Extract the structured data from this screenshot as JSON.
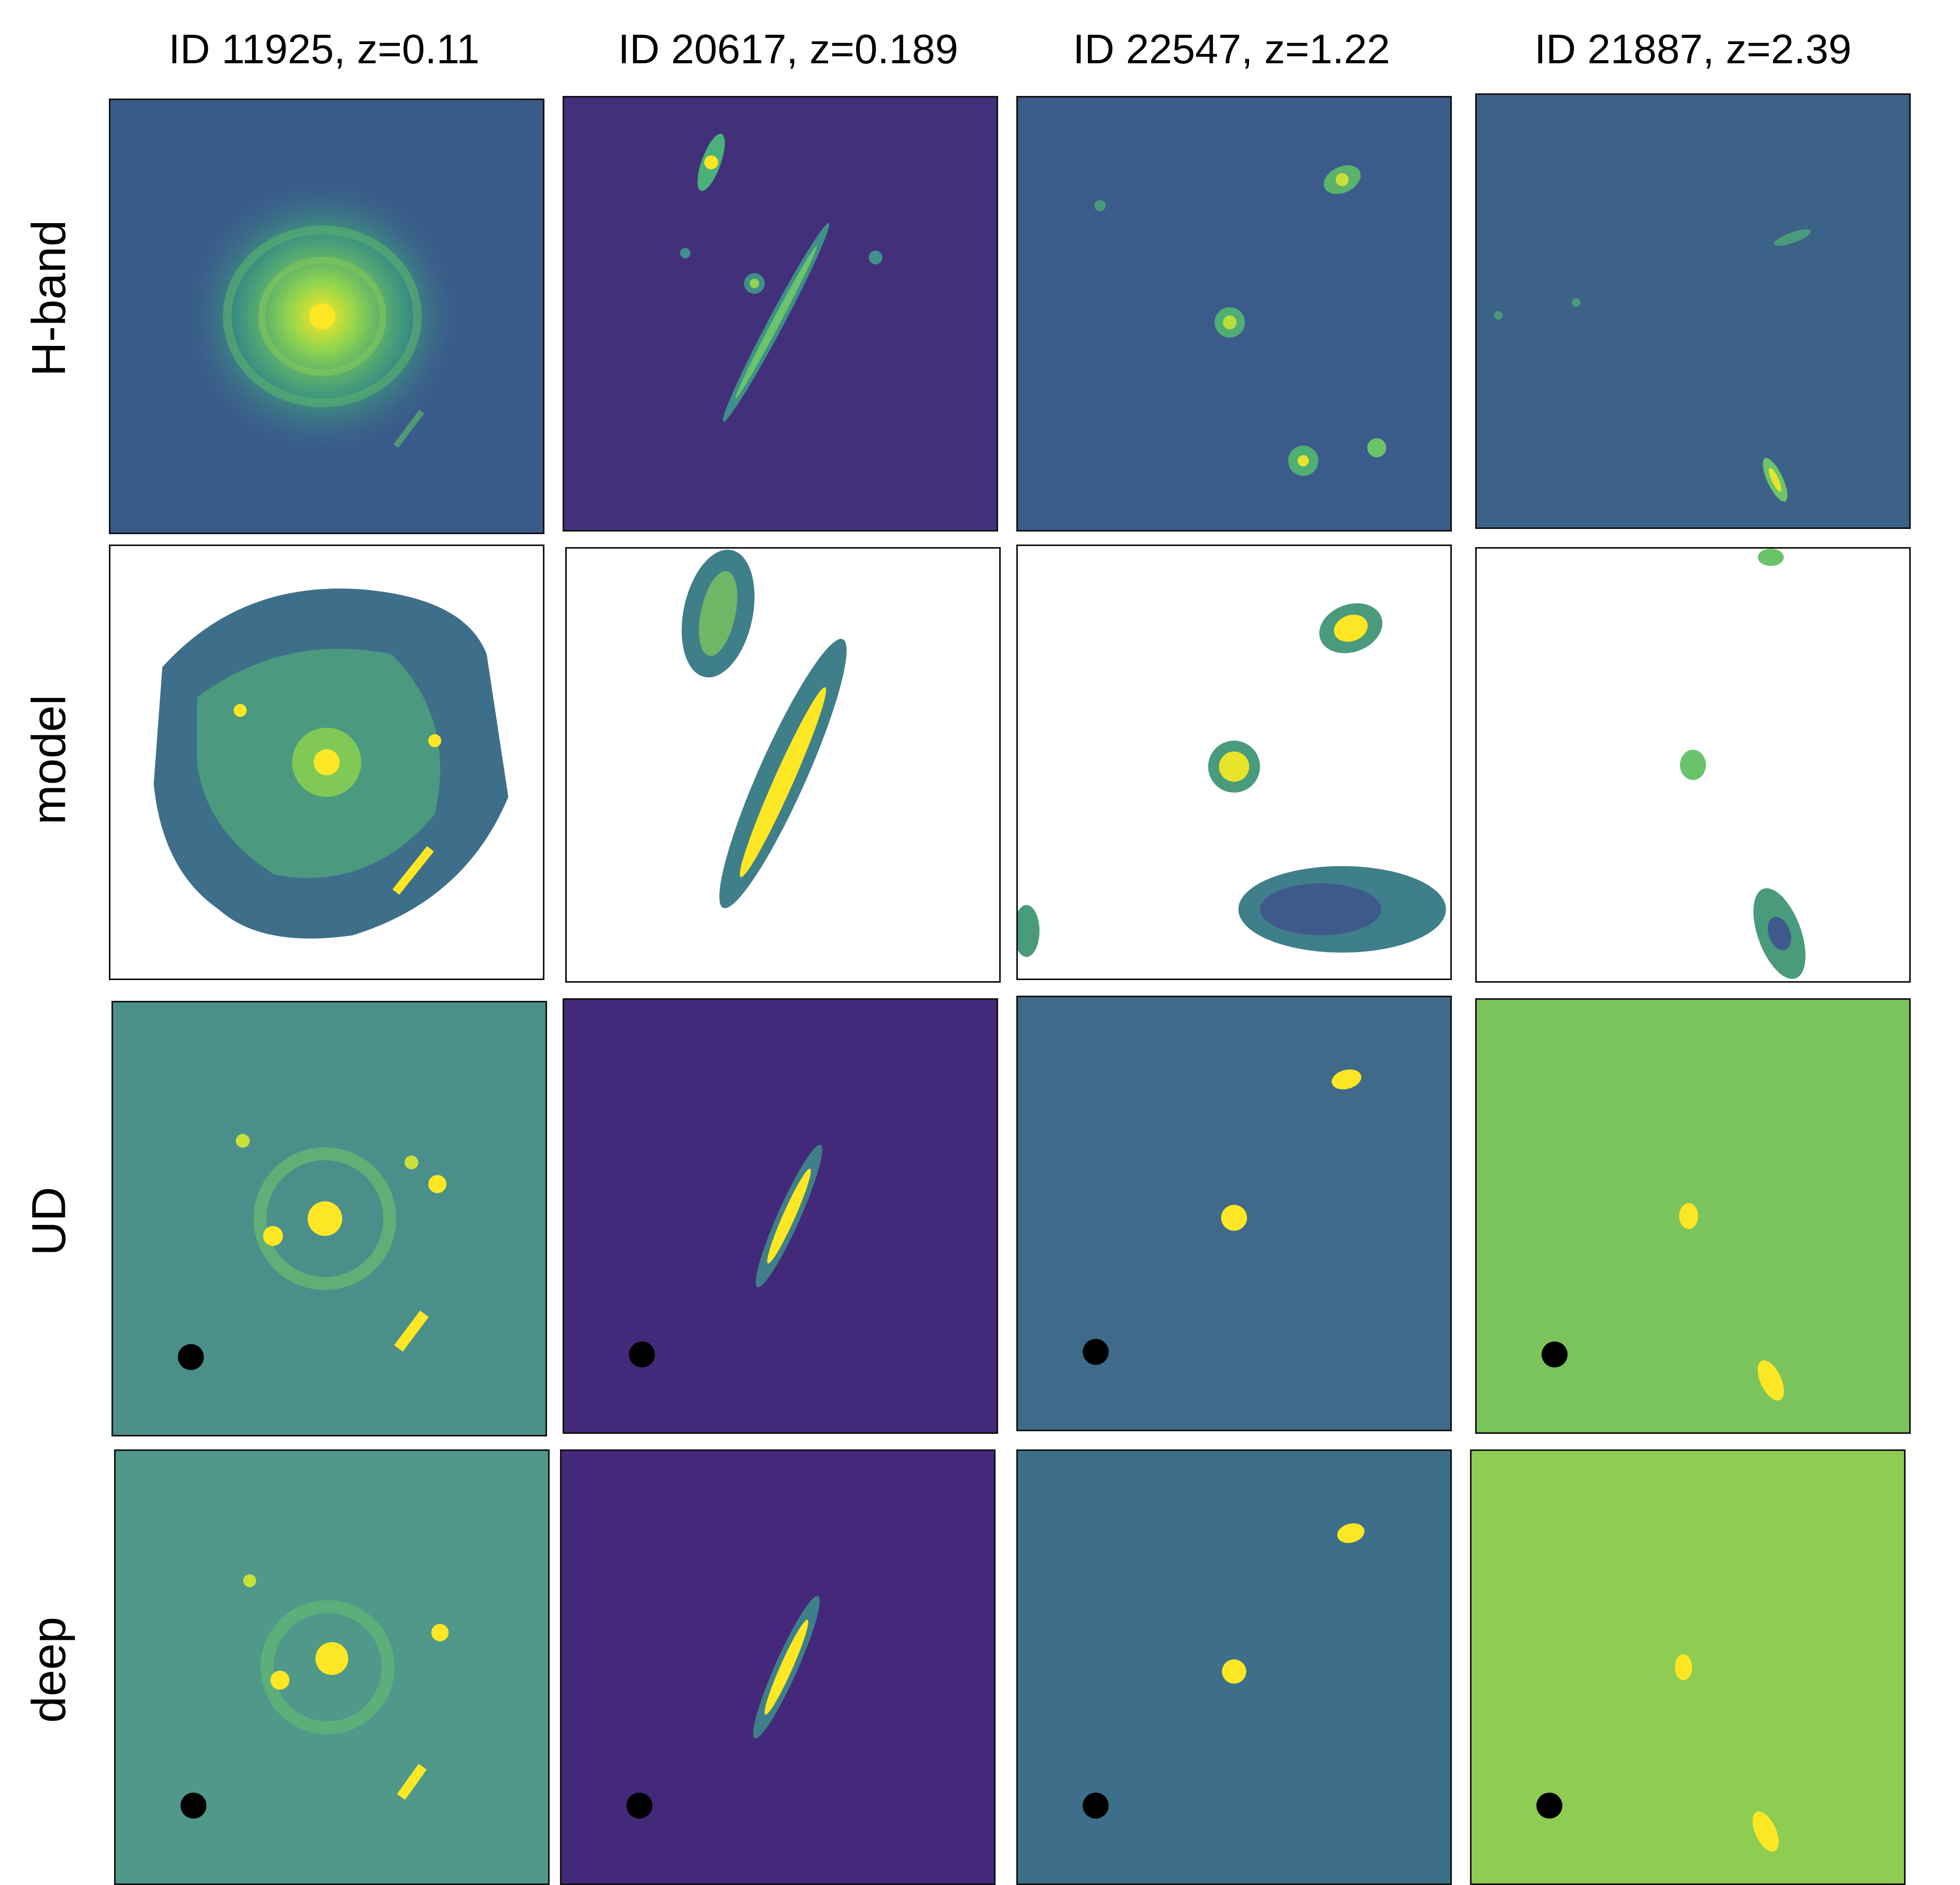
{
  "columns": [
    {
      "title": "ID 11925, z=0.11"
    },
    {
      "title": "ID 20617, z=0.189"
    },
    {
      "title": "ID 22547, z=1.22"
    },
    {
      "title": "ID 21887, z=2.39"
    }
  ],
  "rows": [
    {
      "label": "H-band"
    },
    {
      "label": "model"
    },
    {
      "label": "UD"
    },
    {
      "label": "deep"
    }
  ],
  "colormap": {
    "dark_purple": "#440154",
    "indigo": "#3b2a78",
    "blue": "#3e5a8c",
    "teal": "#3f7f8a",
    "green": "#4aa97c",
    "light_green": "#8fd44e",
    "yellow": "#fde725"
  }
}
